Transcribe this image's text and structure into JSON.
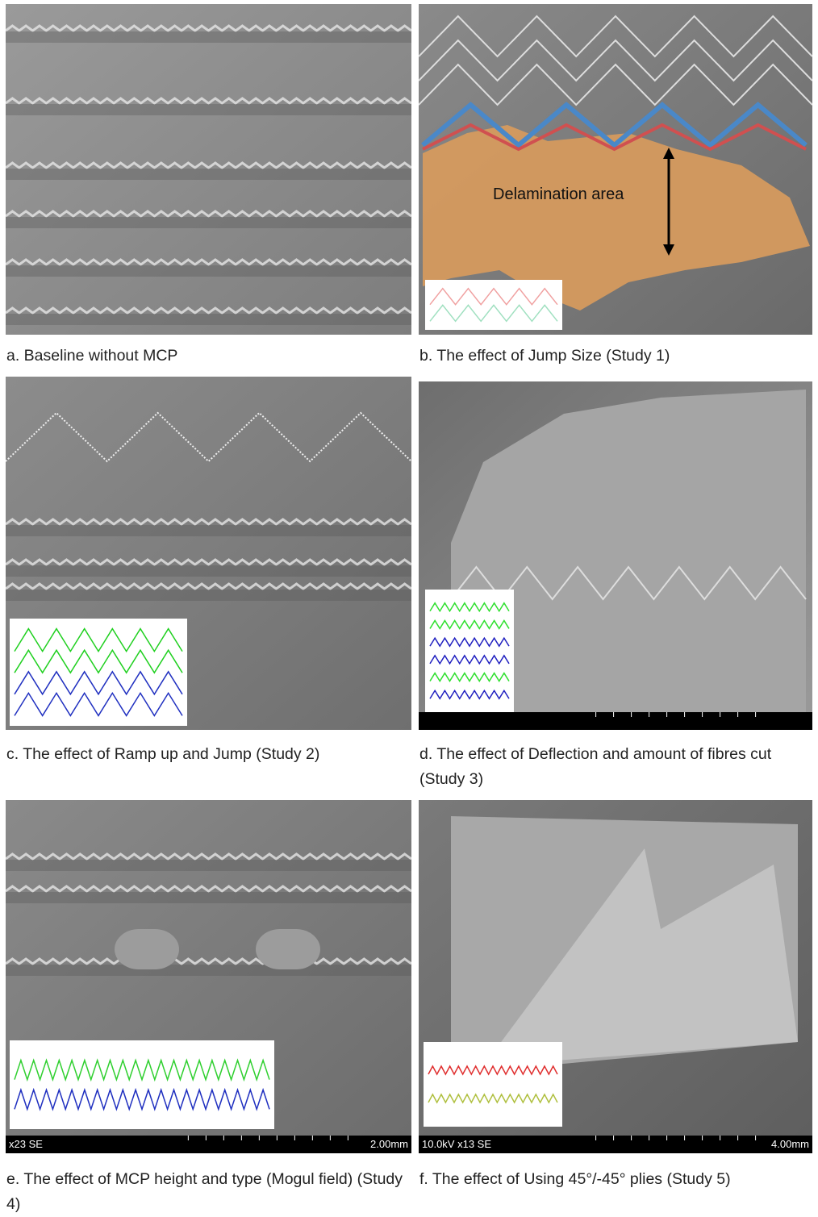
{
  "panels": [
    {
      "caption": "a. Baseline without MCP"
    },
    {
      "caption": "b. The effect of Jump Size (Study 1)",
      "annotation": "Delamination area"
    },
    {
      "caption": "c. The effect of Ramp up and Jump (Study 2)"
    },
    {
      "caption": "d. The effect of Deflection and amount of fibres cut (Study 3)"
    },
    {
      "caption": "e. The effect of MCP height and type (Mogul field) (Study 4)",
      "scale_bar": {
        "info": "x23 SE",
        "length": "2.00mm"
      }
    },
    {
      "caption": "f. The effect of Using 45°/-45° plies (Study 5)",
      "scale_bar": {
        "info": "10.0kV x13 SE",
        "length": "4.00mm"
      }
    }
  ]
}
